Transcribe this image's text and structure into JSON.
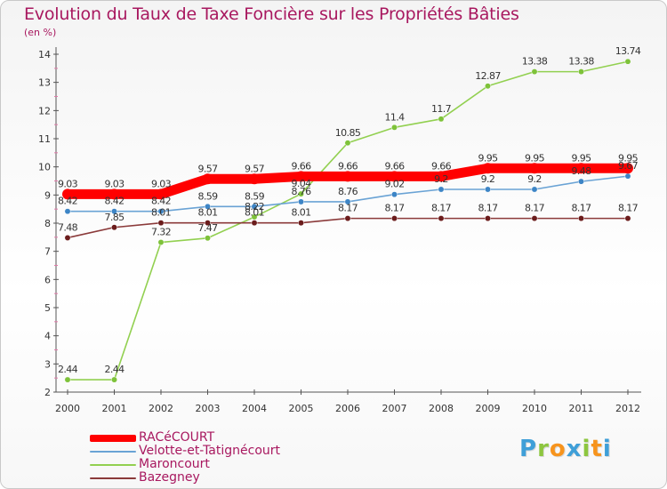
{
  "title": "Evolution du Taux de Taxe Foncière sur les Propriétés Bâties",
  "subtitle": "(en %)",
  "logo": {
    "letters": [
      "P",
      "r",
      "o",
      "x",
      "i",
      "t",
      "i"
    ],
    "colors": [
      "#3f9fd8",
      "#8dc63f",
      "#f7941d",
      "#3f9fd8",
      "#8dc63f",
      "#f7941d",
      "#3f9fd8"
    ]
  },
  "chart_data": {
    "type": "line",
    "title": "Evolution du Taux de Taxe Foncière sur les Propriétés Bâties",
    "ylabel": "(en %)",
    "xlabel": "",
    "x": [
      "2000",
      "2001",
      "2002",
      "2003",
      "2004",
      "2005",
      "2006",
      "2007",
      "2008",
      "2009",
      "2010",
      "2011",
      "2012"
    ],
    "ylim": [
      2,
      14
    ],
    "yticks": [
      "2",
      "3",
      "4",
      "5",
      "6",
      "7",
      "8",
      "9",
      "10",
      "11",
      "12",
      "13",
      "14"
    ],
    "grid": false,
    "legend_position": "bottom-left",
    "series": [
      {
        "name": "Maroncourt",
        "color": "#92d050",
        "marker": "#7ec23a",
        "values": [
          2.44,
          2.44,
          7.32,
          7.47,
          8.22,
          9.04,
          10.85,
          11.4,
          11.7,
          12.87,
          13.38,
          13.38,
          13.74
        ],
        "labels": [
          "2.44",
          "2.44",
          "7.32",
          "7.47",
          "8.22",
          "9.04",
          "10.85",
          "11.4",
          "11.7",
          "12.87",
          "13.38",
          "13.38",
          "13.74"
        ]
      },
      {
        "name": "Velotte-et-Tatignécourt",
        "color": "#6aa3d5",
        "marker": "#3d85c6",
        "values": [
          8.42,
          8.42,
          8.42,
          8.59,
          8.59,
          8.76,
          8.76,
          9.02,
          9.2,
          9.2,
          9.2,
          9.48,
          9.67
        ],
        "labels": [
          "8.42",
          "8.42",
          "8.42",
          "8.59",
          "8.59",
          "8.76",
          "8.76",
          "9.02",
          "9.2",
          "9.2",
          "9.2",
          "9.48",
          "9.67"
        ]
      },
      {
        "name": "Bazegney",
        "color": "#8b3a3a",
        "marker": "#6b1c1c",
        "values": [
          7.48,
          7.85,
          8.01,
          8.01,
          8.01,
          8.01,
          8.17,
          8.17,
          8.17,
          8.17,
          8.17,
          8.17,
          8.17
        ],
        "labels": [
          "7.48",
          "7.85",
          "8.01",
          "8.01",
          "8.01",
          "8.01",
          "8.17",
          "8.17",
          "8.17",
          "8.17",
          "8.17",
          "8.17",
          "8.17"
        ]
      },
      {
        "name": "RACéCOURT",
        "color": "#ff0000",
        "marker": "#ff0000",
        "values": [
          9.03,
          9.03,
          9.03,
          9.57,
          9.57,
          9.66,
          9.66,
          9.66,
          9.66,
          9.95,
          9.95,
          9.95,
          9.95
        ],
        "labels": [
          "9.03",
          "9.03",
          "9.03",
          "9.57",
          "9.57",
          "9.66",
          "9.66",
          "9.66",
          "9.66",
          "9.95",
          "9.95",
          "9.95",
          "9.95"
        ]
      }
    ]
  },
  "legend": [
    {
      "name": "RACéCOURT",
      "color": "#ff0000"
    },
    {
      "name": "Velotte-et-Tatignécourt",
      "color": "#6aa3d5"
    },
    {
      "name": "Maroncourt",
      "color": "#92d050"
    },
    {
      "name": "Bazegney",
      "color": "#8b3a3a"
    }
  ]
}
